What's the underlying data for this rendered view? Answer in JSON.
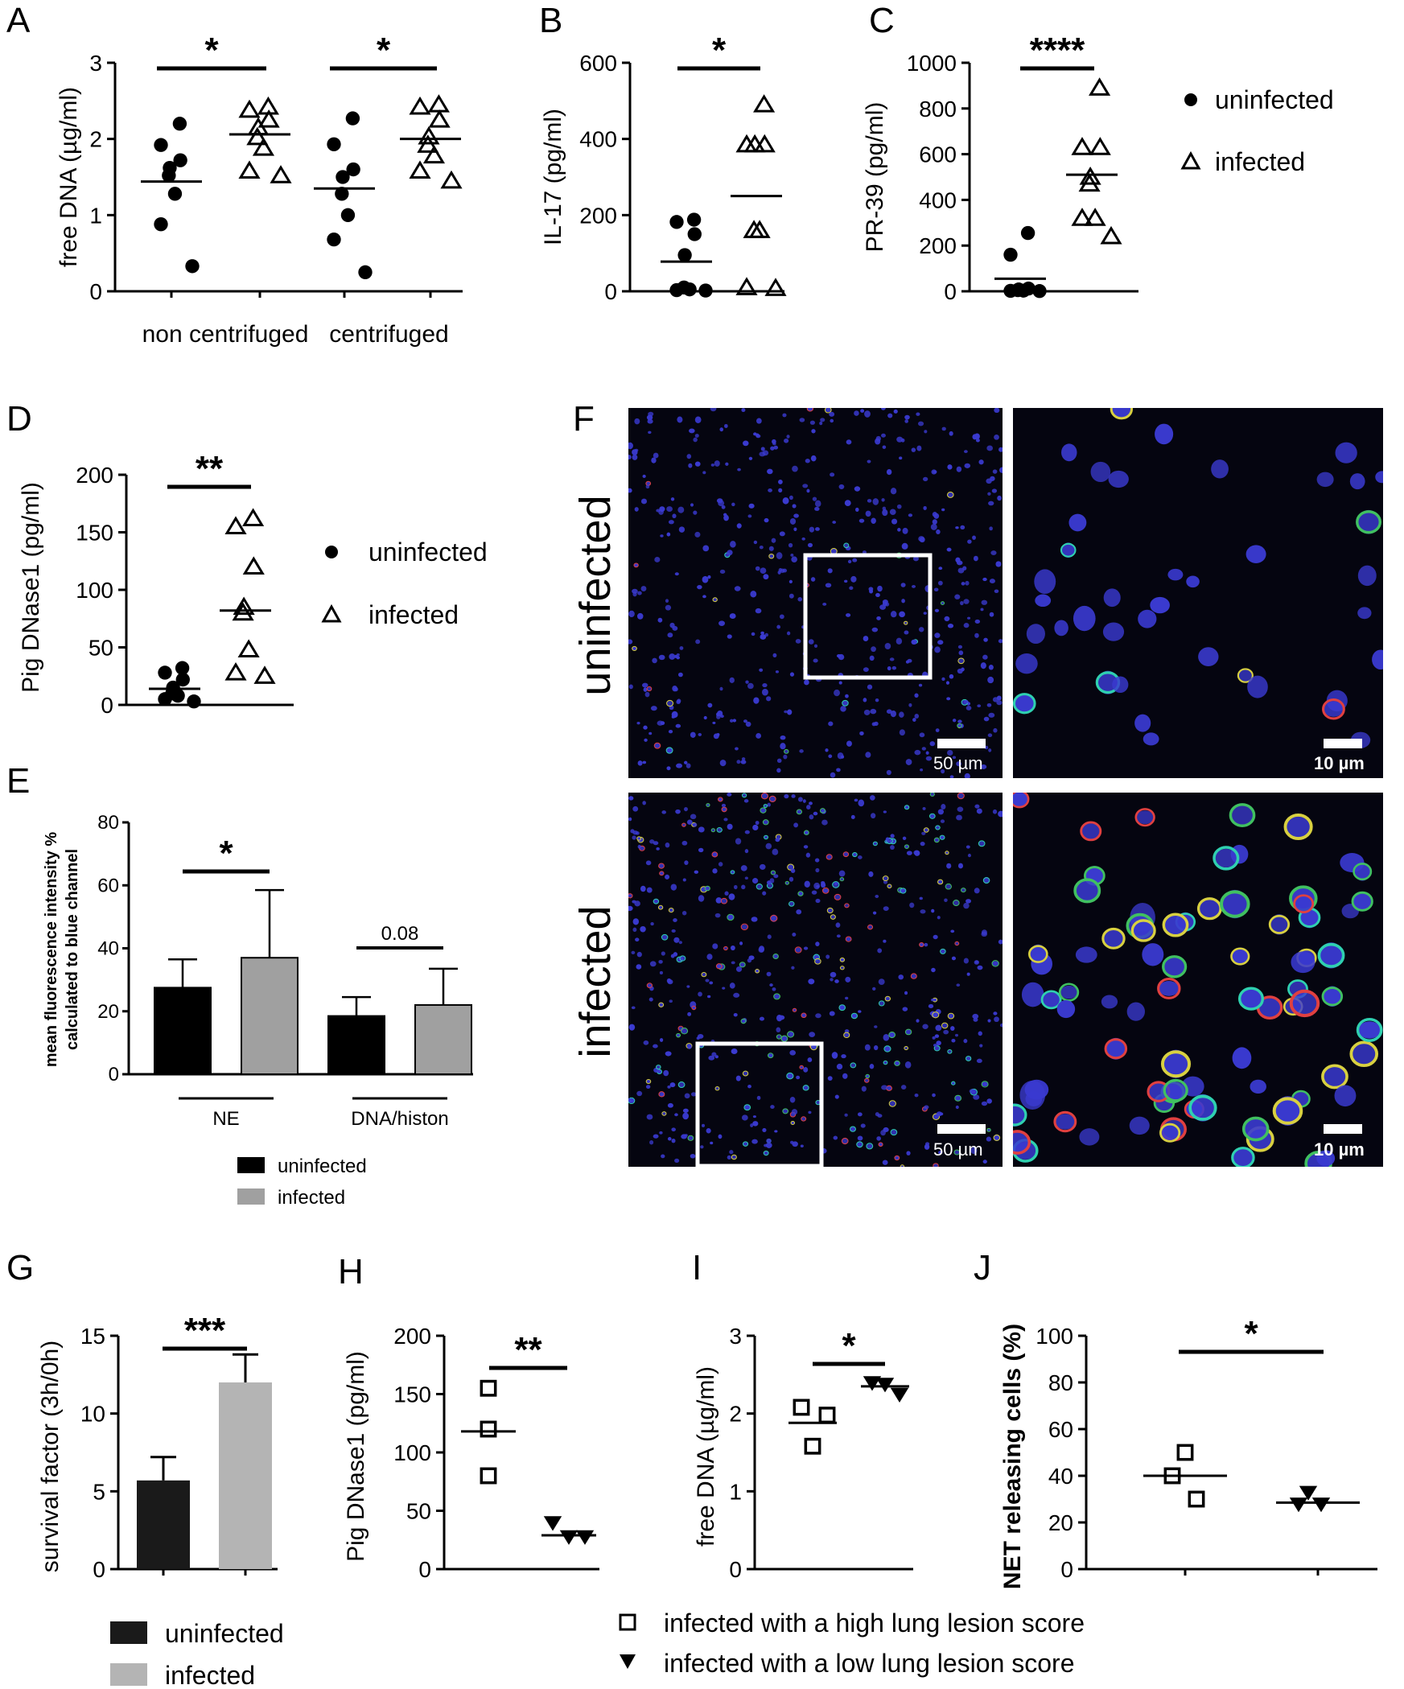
{
  "chart_data": [
    {
      "panel": "A",
      "type": "scatter",
      "ylabel": "free DNA (µg/ml)",
      "ylim": [
        0,
        3
      ],
      "yticks": [
        "0",
        "1",
        "2",
        "3"
      ],
      "groups": [
        "non centrifuged",
        "centrifuged"
      ],
      "series": [
        {
          "name": "uninfected",
          "marker": "circle",
          "values": [
            [
              2.2,
              1.92,
              1.72,
              1.62,
              1.52,
              1.28,
              0.88,
              0.33
            ],
            [
              2.27,
              1.93,
              1.6,
              1.5,
              1.28,
              1.0,
              0.68,
              0.25
            ]
          ],
          "means": [
            1.44,
            1.35
          ]
        },
        {
          "name": "infected",
          "marker": "triangle",
          "values": [
            [
              2.42,
              2.38,
              2.25,
              2.15,
              2.02,
              1.88,
              1.58,
              1.52
            ],
            [
              2.45,
              2.42,
              2.25,
              2.03,
              1.92,
              1.78,
              1.58,
              1.45
            ]
          ],
          "means": [
            2.06,
            2.0
          ]
        }
      ],
      "significance": [
        "*",
        "*"
      ]
    },
    {
      "panel": "B",
      "type": "scatter",
      "ylabel": "IL-17 (pg/ml)",
      "ylim": [
        0,
        600
      ],
      "yticks": [
        "0",
        "200",
        "400",
        "600"
      ],
      "series": [
        {
          "name": "uninfected",
          "marker": "circle",
          "values": [
            188,
            182,
            150,
            95,
            10,
            5,
            3,
            2
          ],
          "mean": 78
        },
        {
          "name": "infected",
          "marker": "triangle",
          "values": [
            490,
            385,
            385,
            385,
            160,
            160,
            10,
            8
          ],
          "mean": 250
        }
      ],
      "significance": "*"
    },
    {
      "panel": "C",
      "type": "scatter",
      "ylabel": "PR-39 (pg/ml)",
      "ylim": [
        0,
        1000
      ],
      "yticks": [
        "0",
        "200",
        "400",
        "600",
        "800",
        "1000"
      ],
      "series": [
        {
          "name": "uninfected",
          "marker": "circle",
          "values": [
            255,
            160,
            12,
            8,
            5,
            3,
            2,
            1
          ],
          "mean": 55
        },
        {
          "name": "infected",
          "marker": "triangle",
          "values": [
            890,
            630,
            630,
            500,
            470,
            320,
            320,
            240
          ],
          "mean": 510
        }
      ],
      "significance": "****"
    },
    {
      "panel": "D",
      "type": "scatter",
      "ylabel": "Pig DNase1 (pg/ml)",
      "ylim": [
        0,
        200
      ],
      "yticks": [
        "0",
        "50",
        "100",
        "150",
        "200"
      ],
      "series": [
        {
          "name": "uninfected",
          "marker": "circle",
          "values": [
            32,
            28,
            22,
            15,
            10,
            8,
            5,
            3
          ],
          "mean": 14
        },
        {
          "name": "infected",
          "marker": "triangle",
          "values": [
            162,
            155,
            120,
            85,
            80,
            48,
            28,
            25
          ],
          "mean": 82
        }
      ],
      "significance": "**"
    },
    {
      "panel": "E",
      "type": "bar",
      "ylabel_lines": [
        "mean fluorescence intensity %",
        "calculated to blue channel"
      ],
      "ylim": [
        0,
        80
      ],
      "yticks": [
        "0",
        "20",
        "40",
        "60",
        "80"
      ],
      "categories": [
        "NE",
        "DNA/histon"
      ],
      "series": [
        {
          "name": "uninfected",
          "color": "#000000",
          "values": [
            27.5,
            18.5
          ],
          "errors": [
            9,
            6
          ]
        },
        {
          "name": "infected",
          "color": "#a0a0a0",
          "values": [
            37,
            22
          ],
          "errors": [
            21.5,
            11.5
          ]
        }
      ],
      "significance": [
        "*",
        "0.08"
      ]
    },
    {
      "panel": "G",
      "type": "bar",
      "ylabel": "survival factor (3h/0h)",
      "ylim": [
        0,
        15
      ],
      "yticks": [
        "0",
        "5",
        "10",
        "15"
      ],
      "series": [
        {
          "name": "uninfected",
          "color": "#1a1a1a",
          "value": 5.7,
          "error": 1.5
        },
        {
          "name": "infected",
          "color": "#b4b4b4",
          "value": 12.0,
          "error": 1.8
        }
      ],
      "significance": "***"
    },
    {
      "panel": "H",
      "type": "scatter",
      "ylabel": "Pig DNase1 (pg/ml)",
      "ylim": [
        0,
        200
      ],
      "yticks": [
        "0",
        "50",
        "100",
        "150",
        "200"
      ],
      "series": [
        {
          "name": "infected with a high lung lesion score",
          "marker": "square",
          "values": [
            155,
            120,
            80
          ],
          "mean": 118
        },
        {
          "name": "infected with a low lung lesion score",
          "marker": "down-triangle",
          "values": [
            40,
            28,
            28
          ],
          "mean": 29
        }
      ],
      "significance": "**"
    },
    {
      "panel": "I",
      "type": "scatter",
      "ylabel": "free DNA (µg/ml)",
      "ylim": [
        0,
        3
      ],
      "yticks": [
        "0",
        "1",
        "2",
        "3"
      ],
      "series": [
        {
          "name": "infected with a high lung lesion score",
          "marker": "square",
          "values": [
            2.08,
            1.98,
            1.58
          ],
          "mean": 1.88
        },
        {
          "name": "infected with a low lung lesion score",
          "marker": "down-triangle",
          "values": [
            2.4,
            2.38,
            2.25
          ],
          "mean": 2.35
        }
      ],
      "significance": "*"
    },
    {
      "panel": "J",
      "type": "scatter",
      "ylabel": "NET releasing cells (%)",
      "ylim": [
        0,
        100
      ],
      "yticks": [
        "0",
        "20",
        "40",
        "60",
        "80",
        "100"
      ],
      "series": [
        {
          "name": "infected with a high lung lesion score",
          "marker": "square",
          "values": [
            50,
            40,
            30
          ],
          "mean": 40
        },
        {
          "name": "infected with a low lung lesion score",
          "marker": "down-triangle",
          "values": [
            33,
            28,
            28
          ],
          "mean": 28.5
        }
      ],
      "significance": "*"
    }
  ],
  "panel_F": {
    "label": "F",
    "rows": [
      "uninfected",
      "infected"
    ],
    "scale_bars": [
      "50 µm",
      "10 µm"
    ]
  },
  "legends": {
    "abc": [
      "uninfected",
      "infected"
    ],
    "d": [
      "uninfected",
      "infected"
    ],
    "e": [
      "uninfected",
      "infected"
    ],
    "g": [
      "uninfected",
      "infected"
    ],
    "hij": [
      "infected with a high lung lesion score",
      "infected with a low lung lesion score"
    ]
  },
  "colors": {
    "micrograph_background": "#050510",
    "nuclei": "#3a3ad0",
    "uninfected_bar": "#000000",
    "infected_bar": "#a0a0a0"
  }
}
